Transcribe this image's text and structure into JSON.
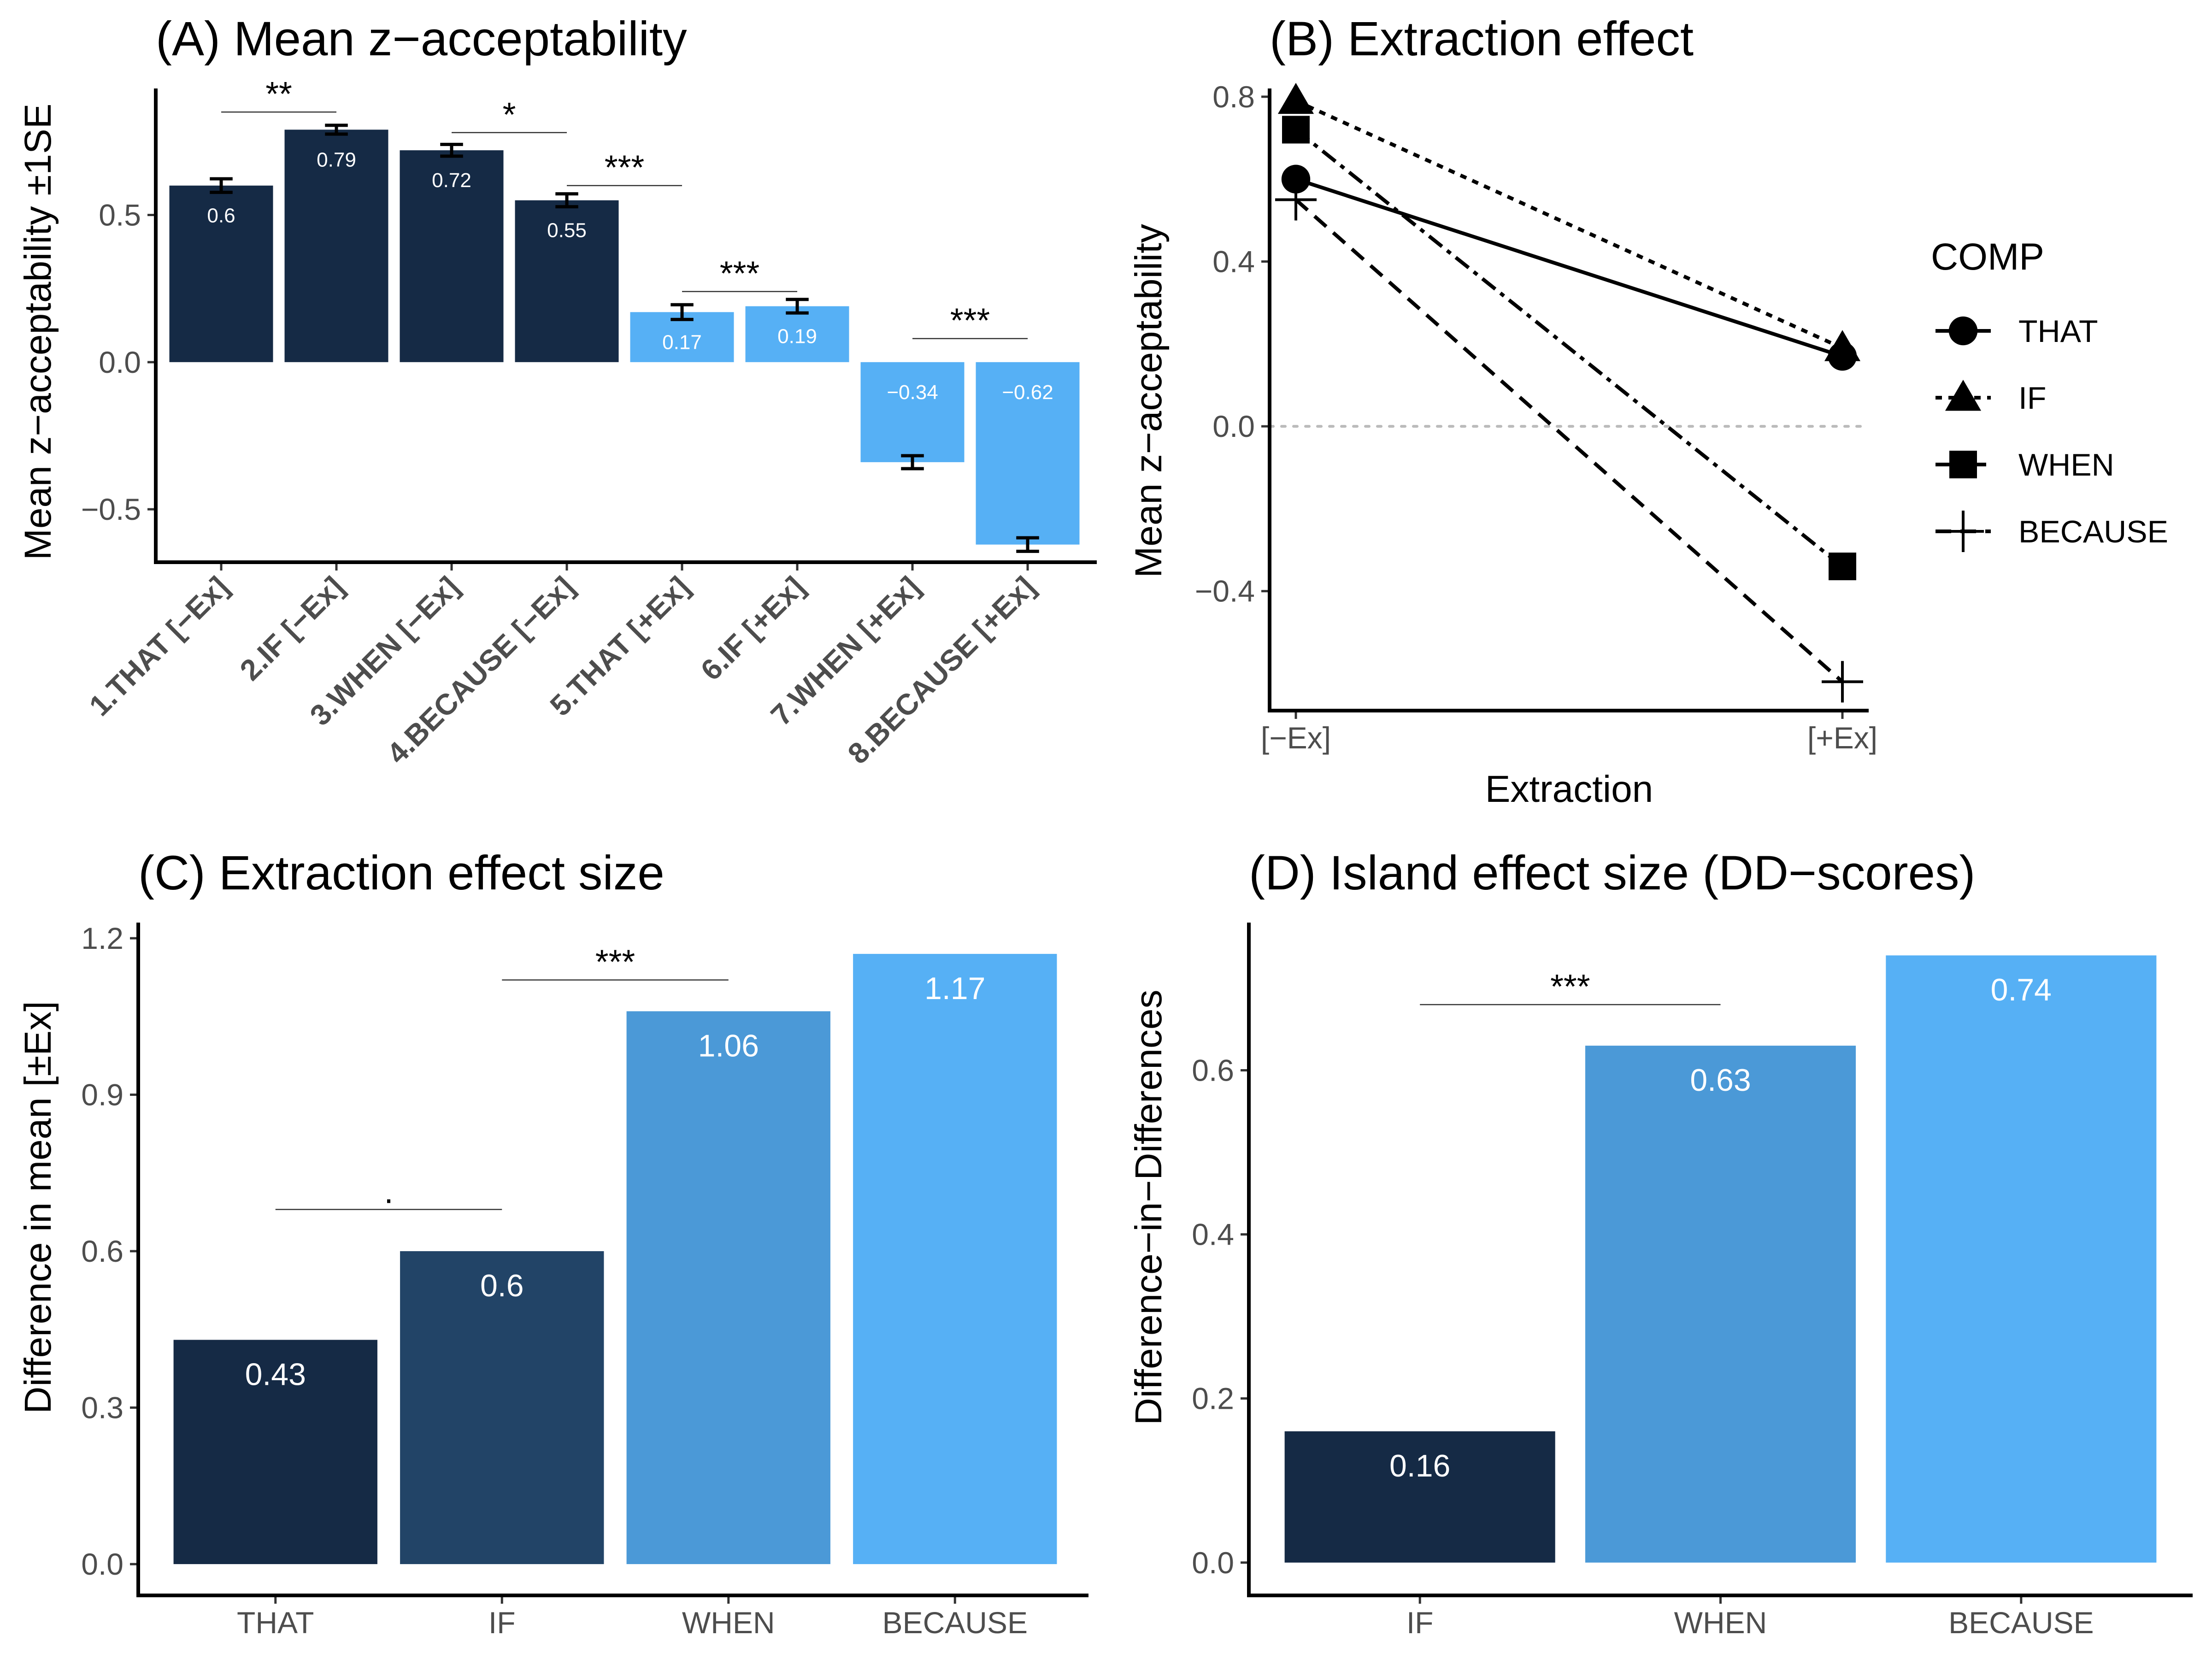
{
  "colors": {
    "navy": "#152a45",
    "darkblue": "#224467",
    "midblue": "#4b99d7",
    "lightblue": "#56b0f5",
    "zero_line": "#bbbbbb"
  },
  "chart_data": [
    {
      "id": "A",
      "type": "bar",
      "title": "(A) Mean z−acceptability",
      "ylabel": "Mean z−acceptability ±1SE",
      "xlabel": "",
      "ylim": [
        -0.68,
        0.93
      ],
      "yticks": [
        -0.5,
        0.0,
        0.5
      ],
      "ytick_labels": [
        "−0.5",
        "0.0",
        "0.5"
      ],
      "categories": [
        "1.THAT [−Ex]",
        "2.IF [−Ex]",
        "3.WHEN [−Ex]",
        "4.BECAUSE [−Ex]",
        "5.THAT [+Ex]",
        "6.IF [+Ex]",
        "7.WHEN [+Ex]",
        "8.BECAUSE [+Ex]"
      ],
      "values": [
        0.6,
        0.79,
        0.72,
        0.55,
        0.17,
        0.19,
        -0.34,
        -0.62
      ],
      "value_labels": [
        "0.6",
        "0.79",
        "0.72",
        "0.55",
        "0.17",
        "0.19",
        "−0.34",
        "−0.62"
      ],
      "se": [
        0.023,
        0.015,
        0.02,
        0.022,
        0.025,
        0.023,
        0.022,
        0.023
      ],
      "bar_colors": [
        "navy",
        "navy",
        "navy",
        "navy",
        "lightblue",
        "lightblue",
        "lightblue",
        "lightblue"
      ],
      "comparisons": [
        {
          "from": 0,
          "to": 1,
          "y": 0.85,
          "label": "**"
        },
        {
          "from": 2,
          "to": 3,
          "y": 0.78,
          "label": "*"
        },
        {
          "from": 3,
          "to": 4,
          "y": 0.6,
          "label": "***"
        },
        {
          "from": 4,
          "to": 5,
          "y": 0.24,
          "label": "***"
        },
        {
          "from": 6,
          "to": 7,
          "y": 0.08,
          "label": "***"
        }
      ]
    },
    {
      "id": "B",
      "type": "line",
      "title": "(B) Extraction effect",
      "xlabel": "Extraction",
      "ylabel": "Mean z−acceptability",
      "x": [
        "[−Ex]",
        "[+Ex]"
      ],
      "ylim": [
        -0.69,
        0.82
      ],
      "yticks": [
        -0.4,
        0.0,
        0.4,
        0.8
      ],
      "ytick_labels": [
        "−0.4",
        "0.0",
        "0.4",
        "0.8"
      ],
      "reference_line": 0.0,
      "legend_title": "COMP",
      "legend_position": "right",
      "series": [
        {
          "name": "THAT",
          "values": [
            0.6,
            0.17
          ],
          "marker": "circle",
          "dash": "solid"
        },
        {
          "name": "IF",
          "values": [
            0.79,
            0.19
          ],
          "marker": "triangle",
          "dash": "dotted"
        },
        {
          "name": "WHEN",
          "values": [
            0.72,
            -0.34
          ],
          "marker": "square",
          "dash": "dash-dot"
        },
        {
          "name": "BECAUSE",
          "values": [
            0.55,
            -0.62
          ],
          "marker": "plus",
          "dash": "dashed"
        }
      ]
    },
    {
      "id": "C",
      "type": "bar",
      "title": "(C) Extraction effect size",
      "ylabel": "Difference in mean [±Ex]",
      "xlabel": "",
      "ylim": [
        -0.06,
        1.23
      ],
      "yticks": [
        0.0,
        0.3,
        0.6,
        0.9,
        1.2
      ],
      "ytick_labels": [
        "0.0",
        "0.3",
        "0.6",
        "0.9",
        "1.2"
      ],
      "categories": [
        "THAT",
        "IF",
        "WHEN",
        "BECAUSE"
      ],
      "values": [
        0.43,
        0.6,
        1.06,
        1.17
      ],
      "value_labels": [
        "0.43",
        "0.6",
        "1.06",
        "1.17"
      ],
      "bar_colors": [
        "navy",
        "darkblue",
        "midblue",
        "lightblue"
      ],
      "comparisons": [
        {
          "from": 0,
          "to": 1,
          "y": 0.68,
          "label": "."
        },
        {
          "from": 1,
          "to": 2,
          "y": 1.12,
          "label": "***"
        }
      ]
    },
    {
      "id": "D",
      "type": "bar",
      "title": "(D) Island effect size (DD−scores)",
      "ylabel": "Difference−in−Differences",
      "xlabel": "",
      "ylim": [
        -0.04,
        0.78
      ],
      "yticks": [
        0.0,
        0.2,
        0.4,
        0.6
      ],
      "ytick_labels": [
        "0.0",
        "0.2",
        "0.4",
        "0.6"
      ],
      "categories": [
        "IF",
        "WHEN",
        "BECAUSE"
      ],
      "values": [
        0.16,
        0.63,
        0.74
      ],
      "value_labels": [
        "0.16",
        "0.63",
        "0.74"
      ],
      "bar_colors": [
        "navy",
        "midblue",
        "lightblue"
      ],
      "comparisons": [
        {
          "from": 0,
          "to": 1,
          "y": 0.68,
          "label": "***"
        }
      ]
    }
  ]
}
